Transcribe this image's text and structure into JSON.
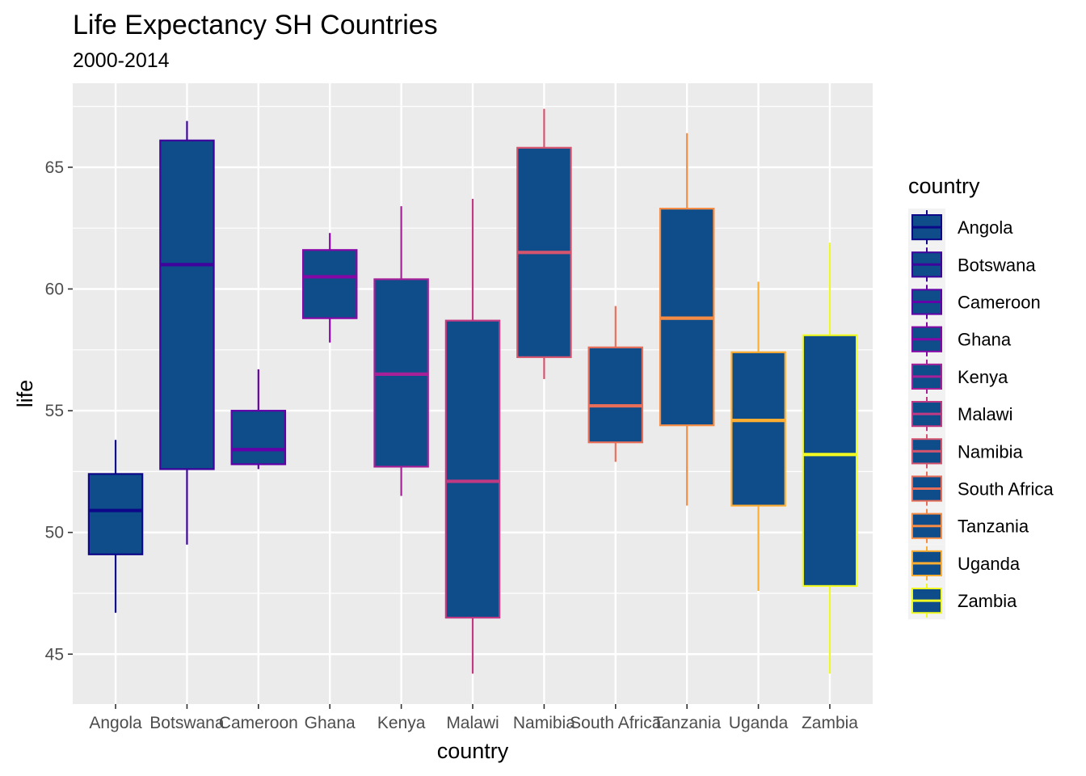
{
  "chart_data": {
    "type": "boxplot",
    "title": "Life Expectancy SH Countries",
    "subtitle": "2000-2014",
    "xlabel": "country",
    "ylabel": "life",
    "ylim": [
      42.95,
      68.45
    ],
    "yticks": [
      45,
      50,
      55,
      60,
      65
    ],
    "grid": true,
    "fill_color": "#0e4d8a",
    "legend": {
      "title": "country",
      "placement": "right"
    },
    "categories": [
      "Angola",
      "Botswana",
      "Cameroon",
      "Ghana",
      "Kenya",
      "Malawi",
      "Namibia",
      "South Africa",
      "Tanzania",
      "Uganda",
      "Zambia"
    ],
    "series": [
      {
        "name": "Angola",
        "color": "#0d0887",
        "min": 46.7,
        "q1": 49.1,
        "median": 50.9,
        "q3": 52.4,
        "max": 53.8
      },
      {
        "name": "Botswana",
        "color": "#3e049c",
        "min": 49.5,
        "q1": 52.6,
        "median": 61.0,
        "q3": 66.1,
        "max": 66.9
      },
      {
        "name": "Cameroon",
        "color": "#6300a7",
        "min": 52.6,
        "q1": 52.8,
        "median": 53.4,
        "q3": 55.0,
        "max": 56.7
      },
      {
        "name": "Ghana",
        "color": "#8606a6",
        "min": 57.8,
        "q1": 58.8,
        "median": 60.5,
        "q3": 61.6,
        "max": 62.3
      },
      {
        "name": "Kenya",
        "color": "#a62098",
        "min": 51.5,
        "q1": 52.7,
        "median": 56.5,
        "q3": 60.4,
        "max": 63.4
      },
      {
        "name": "Malawi",
        "color": "#c03a83",
        "min": 44.2,
        "q1": 46.5,
        "median": 52.1,
        "q3": 58.7,
        "max": 63.7
      },
      {
        "name": "Namibia",
        "color": "#d5546e",
        "min": 56.3,
        "q1": 57.2,
        "median": 61.5,
        "q3": 65.8,
        "max": 67.4
      },
      {
        "name": "South Africa",
        "color": "#e76f5a",
        "min": 52.9,
        "q1": 53.7,
        "median": 55.2,
        "q3": 57.6,
        "max": 59.3
      },
      {
        "name": "Tanzania",
        "color": "#f58c46",
        "min": 51.1,
        "q1": 54.4,
        "median": 58.8,
        "q3": 63.3,
        "max": 66.4
      },
      {
        "name": "Uganda",
        "color": "#fdad32",
        "min": 47.6,
        "q1": 51.1,
        "median": 54.6,
        "q3": 57.4,
        "max": 60.3
      },
      {
        "name": "Zambia",
        "color": "#f0f921",
        "min": 44.2,
        "q1": 47.8,
        "median": 53.2,
        "q3": 58.1,
        "max": 61.9
      }
    ]
  }
}
